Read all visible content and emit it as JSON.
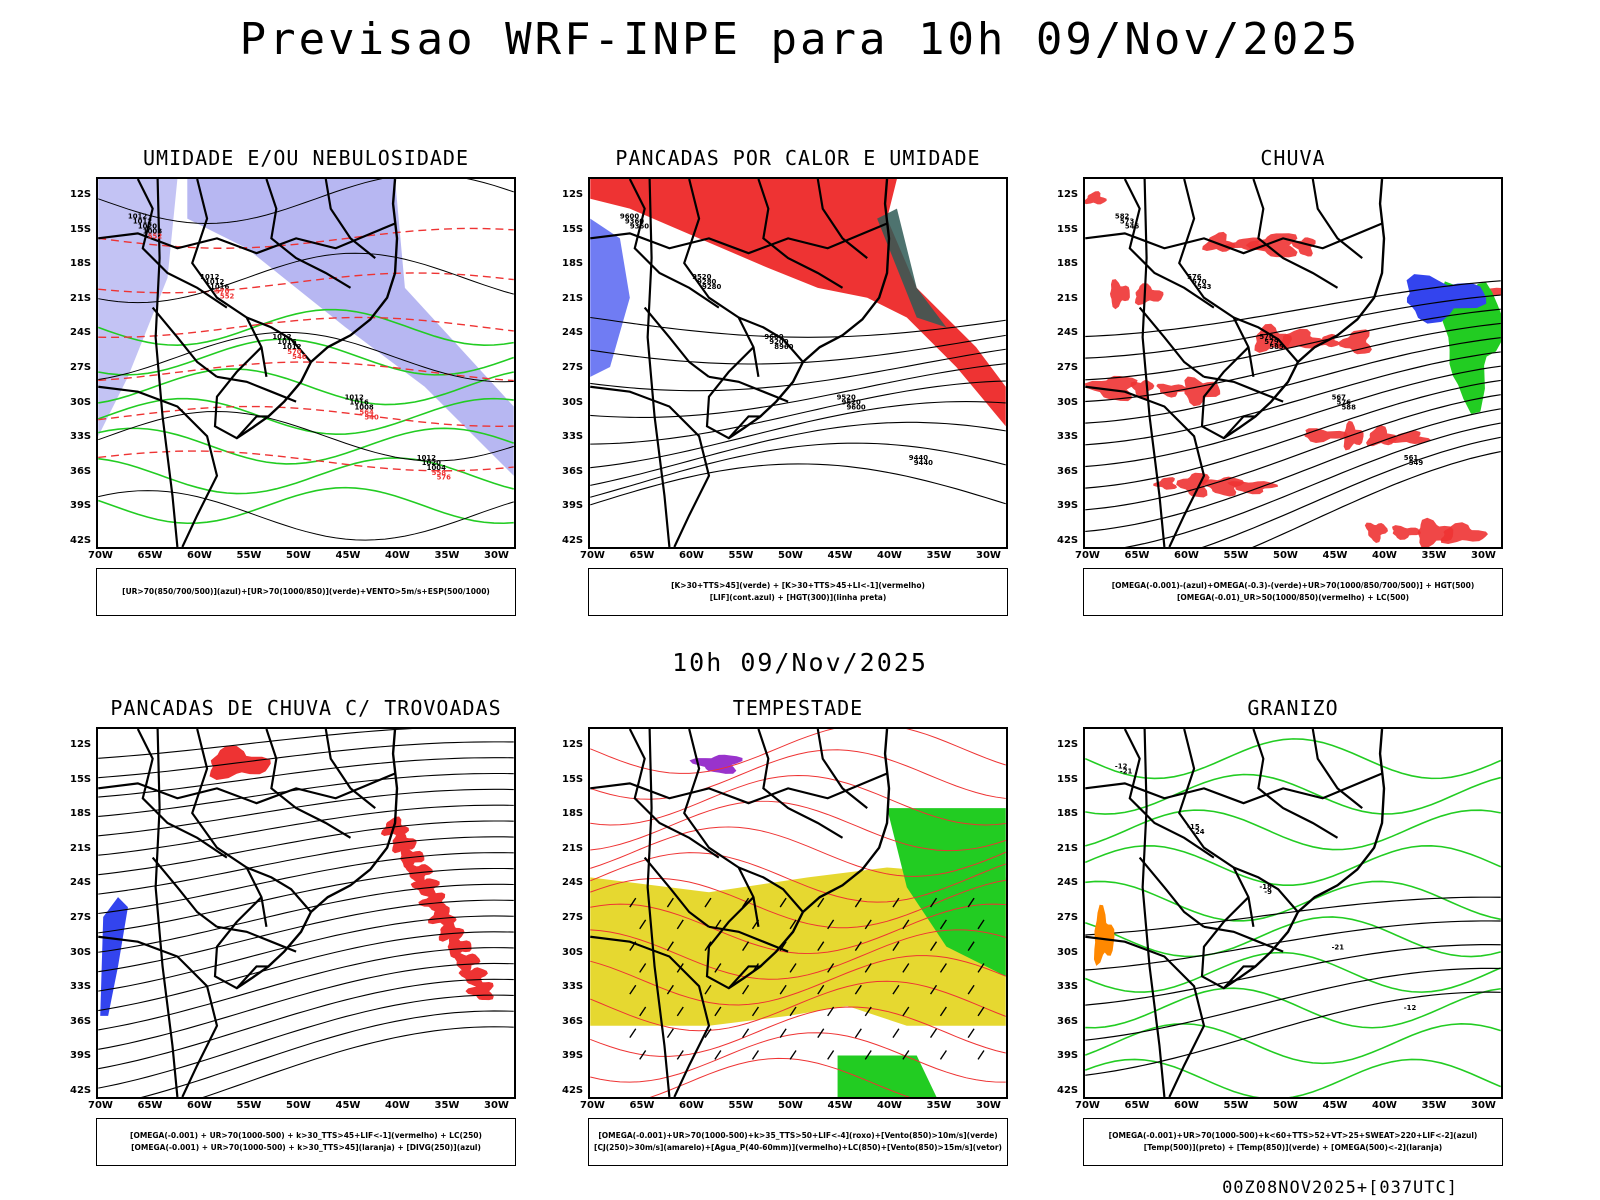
{
  "title": "Previsao WRF-INPE  para 10h 09/Nov/2025",
  "mid_date": "10h 09/Nov/2025",
  "footer": "00Z08NOV2025+[037UTC]",
  "axes": {
    "lat_labels": [
      "12S",
      "15S",
      "18S",
      "21S",
      "24S",
      "27S",
      "30S",
      "33S",
      "36S",
      "39S",
      "42S"
    ],
    "lon_labels": [
      "70W",
      "65W",
      "60W",
      "55W",
      "50W",
      "45W",
      "40W",
      "35W",
      "30W"
    ]
  },
  "colors": {
    "green": "#22cc22",
    "red": "#ee3333",
    "blue": "#3344ee",
    "lavender": "#aaaaf0",
    "yellow": "#e6d830",
    "purple": "#9933cc",
    "orange": "#ff8800",
    "darkteal": "#2f5a56"
  },
  "panels": [
    {
      "title": "UMIDADE E/OU NEBULOSIDADE",
      "legend": [
        "[UR>70(850/700/500)](azul)+[UR>70(1000/850)](verde)+VENTO>5m/s+ESP(500/1000)"
      ],
      "contour_labels": [
        "1012",
        "1012",
        "1012",
        "1012",
        "1012",
        "1012",
        "1012",
        "1016",
        "1016",
        "1020",
        "1020",
        "1016",
        "1012",
        "1008",
        "1004",
        "1008",
        "570",
        "570",
        "564",
        "558",
        "552",
        "552",
        "546",
        "540",
        "576"
      ]
    },
    {
      "title": "PANCADAS POR CALOR E UMIDADE",
      "legend": [
        "[K>30+TTS>45](verde) + [K>30+TTS>45+LI<-1](vermelho)",
        "[LIF](cont.azul) + [HGT(300)](linha preta)"
      ],
      "contour_labels": [
        "9600",
        "9520",
        "9600",
        "9520",
        "9440",
        "9360",
        "9280",
        "9200",
        "9520",
        "9440",
        "9360",
        "9280",
        "8960",
        "9600"
      ]
    },
    {
      "title": "CHUVA",
      "legend": [
        "[OMEGA(-0.001)-(azul)+OMEGA(-0.3)-(verde)+UR>70(1000/850/700/500)] + HGT(500)",
        "[OMEGA(-0.01)_UR>50(1000/850)(vermelho) + LC(500)"
      ],
      "contour_labels": [
        "582",
        "576",
        "570",
        "567",
        "561",
        "573",
        "570",
        "579",
        "576",
        "549",
        "546",
        "543",
        "585",
        "588"
      ]
    },
    {
      "title": "PANCADAS DE CHUVA C/ TROVOADAS",
      "legend": [
        "[OMEGA(-0.001) + UR>70(1000-500) + k>30_TTS>45+LIF<-1](vermelho) + LC(250)",
        "[OMEGA(-0.001) + UR>70(1000-500) + k>30_TTS>45](laranja) + [DIVG(250)](azul)"
      ],
      "contour_labels": []
    },
    {
      "title": "TEMPESTADE",
      "legend": [
        "[OMEGA(-0.001)+UR>70(1000-500)+k>35_TTS>50+LIF<-4](roxo)+[Vento(850)>10m/s](verde)",
        "[CJ(250)>30m/s](amarelo)+[Agua_P(40-60mm)](vermelho)+LC(850)+[Vento(850)>15m/s](vetor)"
      ],
      "contour_labels": []
    },
    {
      "title": "GRANIZO",
      "legend": [
        "[OMEGA(-0.001)+UR>70(1000-500)+k<60+TTS>52+VT>25+SWEAT>220+LIF<-2](azul)",
        "[Temp(500)](preto) + [Temp(850)](verde) + [OMEGA(500)<-2](laranja)"
      ],
      "contour_labels": [
        "-12",
        "-15",
        "-18",
        "-21",
        "-12",
        "-21",
        "-24",
        "-9"
      ]
    }
  ]
}
